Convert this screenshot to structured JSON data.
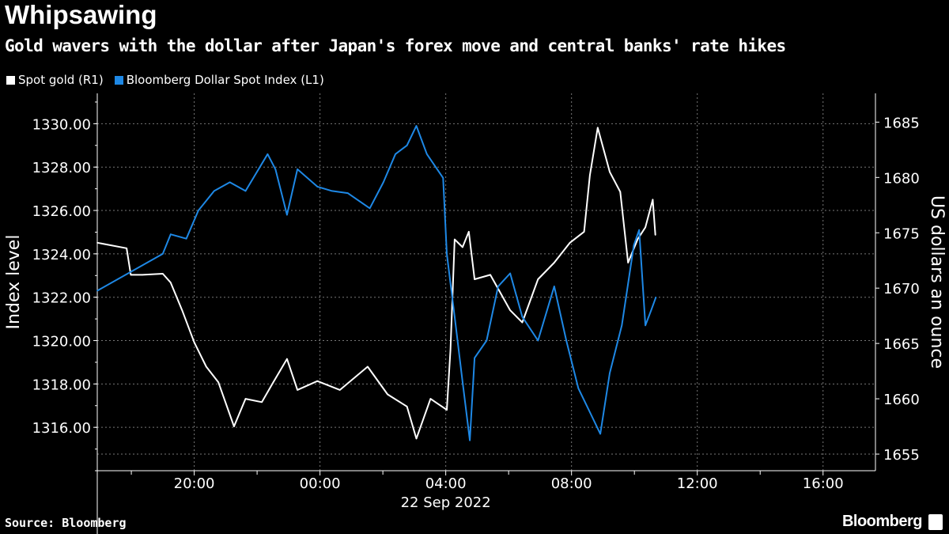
{
  "title": "Whipsawing",
  "subtitle": "Gold wavers with the dollar after Japan's forex move and central banks' rate hikes",
  "source": "Source: Bloomberg",
  "brand": "Bloomberg",
  "chart_data": {
    "type": "line",
    "legend_position": "top-left",
    "grid": true,
    "x_domain": [
      "2022-09-21T16:55",
      "2022-09-22T17:40"
    ],
    "x_ticks": [
      {
        "t": "2022-09-21T20:00",
        "label": "20:00"
      },
      {
        "t": "2022-09-22T00:00",
        "label": "00:00"
      },
      {
        "t": "2022-09-22T04:00",
        "label": "04:00"
      },
      {
        "t": "2022-09-22T08:00",
        "label": "08:00"
      },
      {
        "t": "2022-09-22T12:00",
        "label": "12:00"
      },
      {
        "t": "2022-09-22T16:00",
        "label": "16:00"
      }
    ],
    "x_date_label": "22 Sep 2022",
    "left_axis": {
      "label": "Index level",
      "ylim": [
        1314,
        1331.4
      ],
      "ticks": [
        "1316.00",
        "1318.00",
        "1320.00",
        "1322.00",
        "1324.00",
        "1326.00",
        "1328.00",
        "1330.00"
      ]
    },
    "right_axis": {
      "label": "US dollars an ounce",
      "ylim": [
        1653.5,
        1687.6
      ],
      "ticks": [
        "1655",
        "1660",
        "1665",
        "1670",
        "1675",
        "1680",
        "1685"
      ]
    },
    "series": [
      {
        "name": "Spot gold (R1)",
        "axis": "right",
        "color": "#ffffff",
        "x": [
          "2022-09-21T16:55",
          "2022-09-21T17:51",
          "2022-09-21T17:59",
          "2022-09-21T18:21",
          "2022-09-21T19:00",
          "2022-09-21T19:15",
          "2022-09-21T19:37",
          "2022-09-21T20:00",
          "2022-09-21T20:23",
          "2022-09-21T20:46",
          "2022-09-21T21:16",
          "2022-09-21T21:38",
          "2022-09-21T22:09",
          "2022-09-21T22:31",
          "2022-09-21T22:57",
          "2022-09-21T23:17",
          "2022-09-21T23:55",
          "2022-09-22T00:38",
          "2022-09-22T01:31",
          "2022-09-22T02:09",
          "2022-09-22T02:46",
          "2022-09-22T03:04",
          "2022-09-22T03:31",
          "2022-09-22T04:02",
          "2022-09-22T04:09",
          "2022-09-22T04:17",
          "2022-09-22T04:32",
          "2022-09-22T04:44",
          "2022-09-22T04:55",
          "2022-09-22T05:25",
          "2022-09-22T06:03",
          "2022-09-22T06:26",
          "2022-09-22T06:56",
          "2022-09-22T07:27",
          "2022-09-22T07:57",
          "2022-09-22T08:24",
          "2022-09-22T08:35",
          "2022-09-22T08:50",
          "2022-09-22T09:13",
          "2022-09-22T09:33",
          "2022-09-22T09:48",
          "2022-09-22T10:06",
          "2022-09-22T10:21",
          "2022-09-22T10:35",
          "2022-09-22T10:40"
        ],
        "values": [
          1674.1,
          1673.6,
          1671.2,
          1671.2,
          1671.3,
          1670.5,
          1668,
          1665.1,
          1662.9,
          1661.5,
          1657.5,
          1660,
          1659.7,
          1661.5,
          1663.6,
          1660.8,
          1661.6,
          1660.8,
          1662.9,
          1660.4,
          1659.3,
          1656.4,
          1660,
          1659,
          1664.4,
          1674.4,
          1673.7,
          1675.1,
          1670.8,
          1671.2,
          1668,
          1666.9,
          1670.8,
          1672.3,
          1674.1,
          1675.1,
          1680.2,
          1684.5,
          1680.5,
          1678.7,
          1672.3,
          1674.4,
          1675.5,
          1678,
          1674.8
        ]
      },
      {
        "name": "Bloomberg Dollar Spot Index (L1)",
        "axis": "left",
        "color": "#1e88e5",
        "x": [
          "2022-09-21T16:55",
          "2022-09-21T19:00",
          "2022-09-21T19:15",
          "2022-09-21T19:45",
          "2022-09-21T20:08",
          "2022-09-21T20:38",
          "2022-09-21T21:08",
          "2022-09-21T21:38",
          "2022-09-21T22:20",
          "2022-09-21T22:35",
          "2022-09-21T22:57",
          "2022-09-21T23:17",
          "2022-09-21T23:55",
          "2022-09-22T00:23",
          "2022-09-22T00:53",
          "2022-09-22T01:35",
          "2022-09-22T02:01",
          "2022-09-22T02:24",
          "2022-09-22T02:46",
          "2022-09-22T03:04",
          "2022-09-22T03:24",
          "2022-09-22T03:55",
          "2022-09-22T04:02",
          "2022-09-22T04:17",
          "2022-09-22T04:32",
          "2022-09-22T04:46",
          "2022-09-22T04:55",
          "2022-09-22T05:18",
          "2022-09-22T05:40",
          "2022-09-22T06:03",
          "2022-09-22T06:26",
          "2022-09-22T06:56",
          "2022-09-22T07:27",
          "2022-09-22T07:50",
          "2022-09-22T08:13",
          "2022-09-22T08:35",
          "2022-09-22T08:55",
          "2022-09-22T09:13",
          "2022-09-22T09:36",
          "2022-09-22T09:59",
          "2022-09-22T10:09",
          "2022-09-22T10:21",
          "2022-09-22T10:32",
          "2022-09-22T10:41"
        ],
        "values": [
          1322.3,
          1324,
          1324.9,
          1324.7,
          1326,
          1326.9,
          1327.3,
          1326.9,
          1328.6,
          1327.9,
          1325.8,
          1327.9,
          1327.1,
          1326.9,
          1326.8,
          1326.1,
          1327.3,
          1328.6,
          1329,
          1329.9,
          1328.6,
          1327.5,
          1324,
          1321.1,
          1318.1,
          1315.4,
          1319.2,
          1320,
          1322.5,
          1323.1,
          1321.1,
          1320,
          1322.5,
          1320,
          1317.8,
          1316.7,
          1315.7,
          1318.5,
          1320.7,
          1324.4,
          1325.1,
          1320.7,
          1321.4,
          1322
        ]
      }
    ]
  }
}
